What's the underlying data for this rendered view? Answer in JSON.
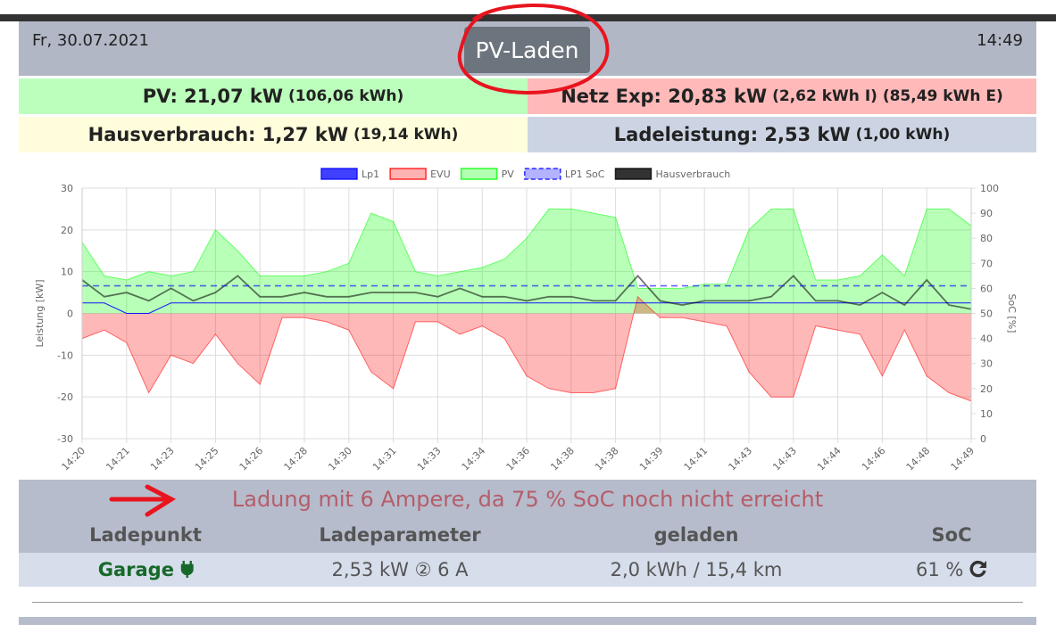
{
  "header": {
    "date": "Fr, 30.07.2021",
    "mode_button": "PV-Laden",
    "time": "14:49"
  },
  "status": {
    "pv": {
      "main": "PV: 21,07 kW",
      "detail": "(106,06 kWh)"
    },
    "grid": {
      "main": "Netz Exp: 20,83 kW",
      "detail": "(2,62 kWh I) (85,49 kWh E)"
    },
    "house": {
      "main": "Hausverbrauch: 1,27 kW",
      "detail": "(19,14 kWh)"
    },
    "charge": {
      "main": "Ladeleistung: 2,53 kW",
      "detail": "(1,00 kWh)"
    }
  },
  "chart_data": {
    "type": "line",
    "ylabel": "Leistung [kW]",
    "y2label": "SoC [%]",
    "categories": [
      "14:20",
      null,
      "14:21",
      null,
      "14:23",
      null,
      "14:25",
      null,
      "14:26",
      null,
      "14:28",
      null,
      "14:30",
      null,
      "14:31",
      null,
      "14:33",
      null,
      "14:34",
      null,
      "14:36",
      null,
      "14:38",
      null,
      "14:38",
      null,
      "14:39",
      null,
      "14:41",
      null,
      "14:43",
      null,
      "14:43",
      null,
      "14:44",
      null,
      "14:46",
      null,
      "14:48",
      null,
      "14:49"
    ],
    "ylim": [
      -30,
      30
    ],
    "yticks": [
      -30,
      -20,
      -10,
      0,
      10,
      20,
      30
    ],
    "y2lim": [
      0,
      100
    ],
    "y2ticks": [
      0,
      10,
      20,
      30,
      40,
      50,
      60,
      70,
      80,
      90,
      100
    ],
    "grid": true,
    "legend": "top",
    "series": [
      {
        "name": "Lp1",
        "color": "#0000ff",
        "style": "area",
        "values": [
          2.5,
          2.5,
          0,
          0,
          2.5,
          2.5,
          2.5,
          2.5,
          2.5,
          2.5,
          2.5,
          2.5,
          2.5,
          2.5,
          2.5,
          2.5,
          2.5,
          2.5,
          2.5,
          2.5,
          2.5,
          2.5,
          2.5,
          2.5,
          2.5,
          2.5,
          2.5,
          2.5,
          2.5,
          2.5,
          2.5,
          2.5,
          2.5,
          2.5,
          2.5,
          2.5,
          2.5,
          2.5,
          2.5,
          2.5,
          2.5
        ]
      },
      {
        "name": "EVU",
        "color": "#ff0000",
        "style": "area",
        "values": [
          -6,
          -4,
          -7,
          -19,
          -10,
          -12,
          -5,
          -12,
          -17,
          -1,
          -1,
          -2,
          -4,
          -14,
          -18,
          -2,
          -2,
          -5,
          -3,
          -6,
          -15,
          -18,
          -19,
          -19,
          -18,
          4,
          -1,
          -1,
          -2,
          -3,
          -14,
          -20,
          -20,
          -3,
          -4,
          -5,
          -15,
          -4,
          -15,
          -19,
          -21
        ]
      },
      {
        "name": "PV",
        "color": "#00ff00",
        "style": "area",
        "values": [
          17,
          9,
          8,
          10,
          9,
          10,
          20,
          15,
          9,
          9,
          9,
          10,
          12,
          24,
          22,
          10,
          9,
          10,
          11,
          13,
          18,
          25,
          25,
          24,
          23,
          6,
          6,
          6,
          7,
          7,
          20,
          25,
          25,
          8,
          8,
          9,
          14,
          9,
          25,
          25,
          21
        ]
      },
      {
        "name": "LP1 SoC",
        "color": "#0000ff",
        "style": "dashed",
        "axis": "y2",
        "values": [
          61,
          61,
          61,
          61,
          61,
          61,
          61,
          61,
          61,
          61,
          61,
          61,
          61,
          61,
          61,
          61,
          61,
          61,
          61,
          61,
          61,
          61,
          61,
          61,
          61,
          61,
          61,
          61,
          61,
          61,
          61,
          61,
          61,
          61,
          61,
          61,
          61,
          61,
          61,
          61,
          61
        ]
      },
      {
        "name": "Hausverbrauch",
        "color": "#000000",
        "style": "line",
        "values": [
          8,
          4,
          5,
          3,
          6,
          3,
          5,
          9,
          4,
          4,
          5,
          4,
          4,
          5,
          5,
          5,
          4,
          6,
          4,
          4,
          3,
          4,
          4,
          3,
          3,
          9,
          3,
          2,
          3,
          3,
          3,
          4,
          9,
          3,
          3,
          2,
          5,
          2,
          8,
          2,
          1
        ]
      }
    ]
  },
  "message": "Ladung mit 6 Ampere, da 75 % SoC noch nicht erreicht",
  "table": {
    "headers": [
      "Ladepunkt",
      "Ladeparameter",
      "geladen",
      "SoC"
    ],
    "rows": [
      [
        "Garage",
        "2,53 kW ② 6 A",
        "2,0 kWh / 15,4 km",
        "61 %"
      ]
    ]
  }
}
